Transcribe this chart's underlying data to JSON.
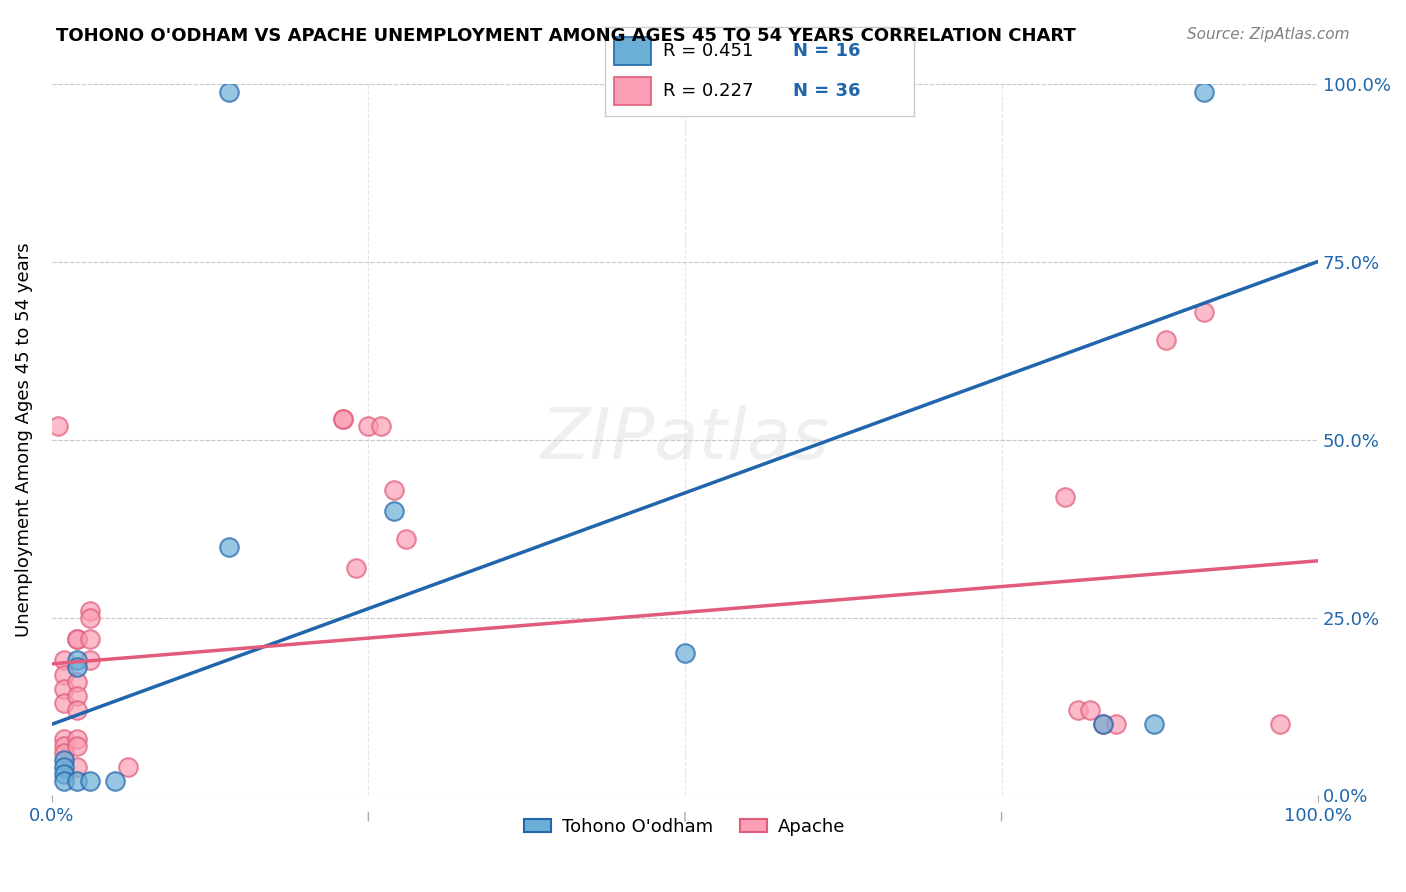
{
  "title": "TOHONO O'ODHAM VS APACHE UNEMPLOYMENT AMONG AGES 45 TO 54 YEARS CORRELATION CHART",
  "source": "Source: ZipAtlas.com",
  "ylabel": "Unemployment Among Ages 45 to 54 years",
  "xlabel": "",
  "xlim": [
    0,
    1
  ],
  "ylim": [
    0,
    1
  ],
  "xticks": [
    0,
    0.25,
    0.5,
    0.75,
    1.0
  ],
  "yticks": [
    0,
    0.25,
    0.5,
    0.75,
    1.0
  ],
  "xtick_labels": [
    "0.0%",
    "",
    "",
    "",
    "100.0%"
  ],
  "ytick_labels_right": [
    "0.0%",
    "25.0%",
    "50.0%",
    "75.0%",
    "100.0%"
  ],
  "blue_color": "#6baed6",
  "pink_color": "#fa9fb5",
  "blue_line_color": "#2166ac",
  "pink_line_color": "#e05c7a",
  "legend_R_blue": "R = 0.451",
  "legend_N_blue": "N = 16",
  "legend_R_pink": "R = 0.227",
  "legend_N_pink": "N = 36",
  "legend_label_blue": "Tohono O'odham",
  "legend_label_pink": "Apache",
  "watermark": "ZIPatlas",
  "blue_points": [
    [
      0.02,
      0.19
    ],
    [
      0.02,
      0.18
    ],
    [
      0.01,
      0.05
    ],
    [
      0.01,
      0.04
    ],
    [
      0.01,
      0.03
    ],
    [
      0.01,
      0.02
    ],
    [
      0.02,
      0.02
    ],
    [
      0.03,
      0.02
    ],
    [
      0.05,
      0.02
    ],
    [
      0.14,
      0.99
    ],
    [
      0.14,
      0.35
    ],
    [
      0.27,
      0.4
    ],
    [
      0.5,
      0.2
    ],
    [
      0.83,
      0.1
    ],
    [
      0.87,
      0.1
    ],
    [
      0.91,
      0.99
    ]
  ],
  "pink_points": [
    [
      0.005,
      0.52
    ],
    [
      0.01,
      0.19
    ],
    [
      0.01,
      0.17
    ],
    [
      0.01,
      0.15
    ],
    [
      0.01,
      0.13
    ],
    [
      0.01,
      0.08
    ],
    [
      0.01,
      0.07
    ],
    [
      0.01,
      0.06
    ],
    [
      0.02,
      0.22
    ],
    [
      0.02,
      0.22
    ],
    [
      0.02,
      0.16
    ],
    [
      0.02,
      0.14
    ],
    [
      0.02,
      0.12
    ],
    [
      0.02,
      0.08
    ],
    [
      0.02,
      0.07
    ],
    [
      0.02,
      0.04
    ],
    [
      0.03,
      0.26
    ],
    [
      0.03,
      0.25
    ],
    [
      0.03,
      0.22
    ],
    [
      0.03,
      0.19
    ],
    [
      0.06,
      0.04
    ],
    [
      0.23,
      0.53
    ],
    [
      0.23,
      0.53
    ],
    [
      0.24,
      0.32
    ],
    [
      0.25,
      0.52
    ],
    [
      0.26,
      0.52
    ],
    [
      0.27,
      0.43
    ],
    [
      0.28,
      0.36
    ],
    [
      0.8,
      0.42
    ],
    [
      0.81,
      0.12
    ],
    [
      0.82,
      0.12
    ],
    [
      0.83,
      0.1
    ],
    [
      0.84,
      0.1
    ],
    [
      0.88,
      0.64
    ],
    [
      0.91,
      0.68
    ],
    [
      0.97,
      0.1
    ]
  ],
  "blue_slope": 0.651,
  "blue_intercept": 0.1,
  "pink_slope": 0.145,
  "pink_intercept": 0.185
}
